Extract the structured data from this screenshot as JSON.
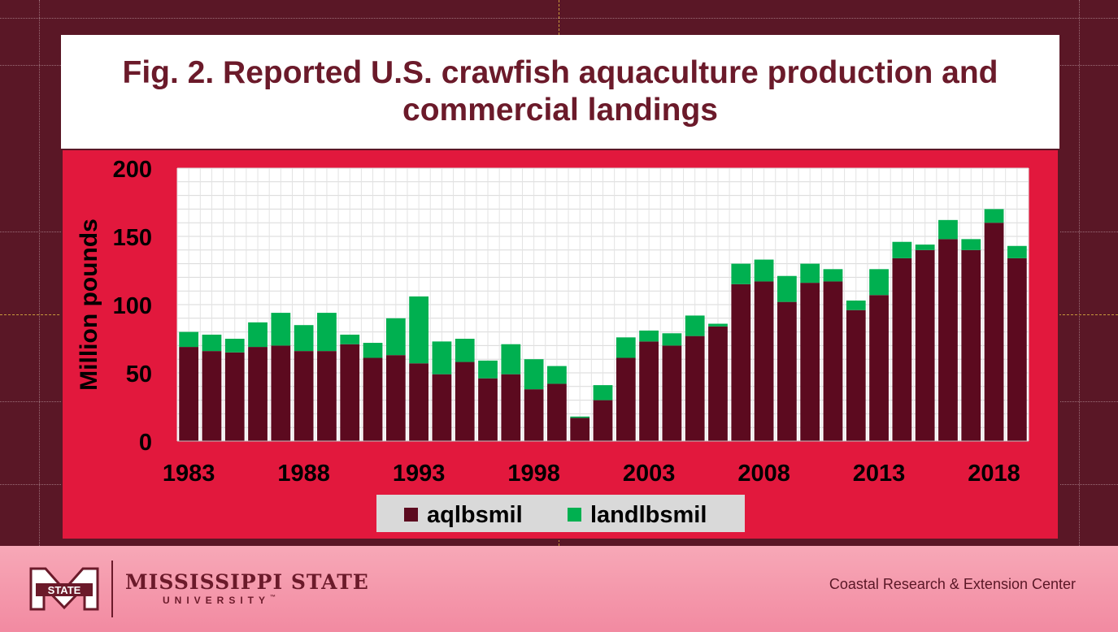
{
  "slide": {
    "title": "Fig. 2. Reported U.S. crawfish aquaculture production and commercial landings",
    "footer_left": {
      "brand": "MISSISSIPPI STATE",
      "sub": "UNIVERSITY",
      "logo_text": "STATE",
      "trademark": "™"
    },
    "footer_right": "Coastal Research & Extension Center"
  },
  "colors": {
    "background": "#5a1726",
    "panel": "#e2183d",
    "aq": "#5c0a1f",
    "land": "#00b050",
    "title": "#6b1a2a"
  },
  "chart_data": {
    "type": "bar",
    "stacked": true,
    "title": "",
    "ylabel": "Million pounds",
    "xlabel": "",
    "ylim": [
      0,
      200
    ],
    "y_ticks": [
      0,
      50,
      100,
      150,
      200
    ],
    "x_tick_labels": [
      "1983",
      "1988",
      "1993",
      "1998",
      "2003",
      "2008",
      "2013",
      "2018"
    ],
    "categories": [
      1983,
      1984,
      1985,
      1986,
      1987,
      1988,
      1989,
      1990,
      1991,
      1992,
      1993,
      1994,
      1995,
      1996,
      1997,
      1998,
      1999,
      2000,
      2001,
      2002,
      2003,
      2004,
      2005,
      2006,
      2007,
      2008,
      2009,
      2010,
      2011,
      2012,
      2013,
      2014,
      2015,
      2016,
      2017,
      2018,
      2019
    ],
    "series": [
      {
        "name": "aqlbsmil",
        "values": [
          69,
          66,
          65,
          69,
          70,
          66,
          66,
          71,
          61,
          63,
          57,
          49,
          58,
          46,
          49,
          38,
          42,
          17,
          30,
          61,
          73,
          70,
          77,
          84,
          115,
          117,
          102,
          116,
          117,
          96,
          107,
          134,
          140,
          148,
          140,
          160,
          134
        ]
      },
      {
        "name": "landlbsmil",
        "values": [
          11,
          12,
          10,
          18,
          24,
          19,
          28,
          7,
          11,
          27,
          49,
          24,
          17,
          13,
          22,
          22,
          13,
          1,
          11,
          15,
          8,
          9,
          15,
          2,
          15,
          16,
          19,
          14,
          9,
          7,
          19,
          12,
          4,
          14,
          8,
          10,
          9
        ]
      }
    ],
    "grid": true,
    "legend": "bottom-center"
  }
}
